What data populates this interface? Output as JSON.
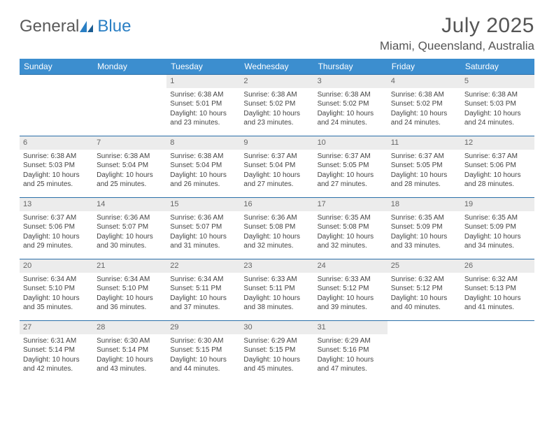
{
  "logo": {
    "part1": "General",
    "part2": "Blue"
  },
  "title": "July 2025",
  "location": "Miami, Queensland, Australia",
  "colors": {
    "header_bg": "#3c8ecf",
    "row_border": "#2a6fa8",
    "daynum_bg": "#ececec",
    "logo_blue": "#2a7fc4",
    "text": "#444"
  },
  "dayNames": [
    "Sunday",
    "Monday",
    "Tuesday",
    "Wednesday",
    "Thursday",
    "Friday",
    "Saturday"
  ],
  "weeks": [
    [
      null,
      null,
      {
        "d": "1",
        "sr": "6:38 AM",
        "ss": "5:01 PM",
        "dl": "10 hours and 23 minutes."
      },
      {
        "d": "2",
        "sr": "6:38 AM",
        "ss": "5:02 PM",
        "dl": "10 hours and 23 minutes."
      },
      {
        "d": "3",
        "sr": "6:38 AM",
        "ss": "5:02 PM",
        "dl": "10 hours and 24 minutes."
      },
      {
        "d": "4",
        "sr": "6:38 AM",
        "ss": "5:02 PM",
        "dl": "10 hours and 24 minutes."
      },
      {
        "d": "5",
        "sr": "6:38 AM",
        "ss": "5:03 PM",
        "dl": "10 hours and 24 minutes."
      }
    ],
    [
      {
        "d": "6",
        "sr": "6:38 AM",
        "ss": "5:03 PM",
        "dl": "10 hours and 25 minutes."
      },
      {
        "d": "7",
        "sr": "6:38 AM",
        "ss": "5:04 PM",
        "dl": "10 hours and 25 minutes."
      },
      {
        "d": "8",
        "sr": "6:38 AM",
        "ss": "5:04 PM",
        "dl": "10 hours and 26 minutes."
      },
      {
        "d": "9",
        "sr": "6:37 AM",
        "ss": "5:04 PM",
        "dl": "10 hours and 27 minutes."
      },
      {
        "d": "10",
        "sr": "6:37 AM",
        "ss": "5:05 PM",
        "dl": "10 hours and 27 minutes."
      },
      {
        "d": "11",
        "sr": "6:37 AM",
        "ss": "5:05 PM",
        "dl": "10 hours and 28 minutes."
      },
      {
        "d": "12",
        "sr": "6:37 AM",
        "ss": "5:06 PM",
        "dl": "10 hours and 28 minutes."
      }
    ],
    [
      {
        "d": "13",
        "sr": "6:37 AM",
        "ss": "5:06 PM",
        "dl": "10 hours and 29 minutes."
      },
      {
        "d": "14",
        "sr": "6:36 AM",
        "ss": "5:07 PM",
        "dl": "10 hours and 30 minutes."
      },
      {
        "d": "15",
        "sr": "6:36 AM",
        "ss": "5:07 PM",
        "dl": "10 hours and 31 minutes."
      },
      {
        "d": "16",
        "sr": "6:36 AM",
        "ss": "5:08 PM",
        "dl": "10 hours and 32 minutes."
      },
      {
        "d": "17",
        "sr": "6:35 AM",
        "ss": "5:08 PM",
        "dl": "10 hours and 32 minutes."
      },
      {
        "d": "18",
        "sr": "6:35 AM",
        "ss": "5:09 PM",
        "dl": "10 hours and 33 minutes."
      },
      {
        "d": "19",
        "sr": "6:35 AM",
        "ss": "5:09 PM",
        "dl": "10 hours and 34 minutes."
      }
    ],
    [
      {
        "d": "20",
        "sr": "6:34 AM",
        "ss": "5:10 PM",
        "dl": "10 hours and 35 minutes."
      },
      {
        "d": "21",
        "sr": "6:34 AM",
        "ss": "5:10 PM",
        "dl": "10 hours and 36 minutes."
      },
      {
        "d": "22",
        "sr": "6:34 AM",
        "ss": "5:11 PM",
        "dl": "10 hours and 37 minutes."
      },
      {
        "d": "23",
        "sr": "6:33 AM",
        "ss": "5:11 PM",
        "dl": "10 hours and 38 minutes."
      },
      {
        "d": "24",
        "sr": "6:33 AM",
        "ss": "5:12 PM",
        "dl": "10 hours and 39 minutes."
      },
      {
        "d": "25",
        "sr": "6:32 AM",
        "ss": "5:12 PM",
        "dl": "10 hours and 40 minutes."
      },
      {
        "d": "26",
        "sr": "6:32 AM",
        "ss": "5:13 PM",
        "dl": "10 hours and 41 minutes."
      }
    ],
    [
      {
        "d": "27",
        "sr": "6:31 AM",
        "ss": "5:14 PM",
        "dl": "10 hours and 42 minutes."
      },
      {
        "d": "28",
        "sr": "6:30 AM",
        "ss": "5:14 PM",
        "dl": "10 hours and 43 minutes."
      },
      {
        "d": "29",
        "sr": "6:30 AM",
        "ss": "5:15 PM",
        "dl": "10 hours and 44 minutes."
      },
      {
        "d": "30",
        "sr": "6:29 AM",
        "ss": "5:15 PM",
        "dl": "10 hours and 45 minutes."
      },
      {
        "d": "31",
        "sr": "6:29 AM",
        "ss": "5:16 PM",
        "dl": "10 hours and 47 minutes."
      },
      null,
      null
    ]
  ],
  "labels": {
    "sunrise": "Sunrise:",
    "sunset": "Sunset:",
    "daylight": "Daylight:"
  }
}
